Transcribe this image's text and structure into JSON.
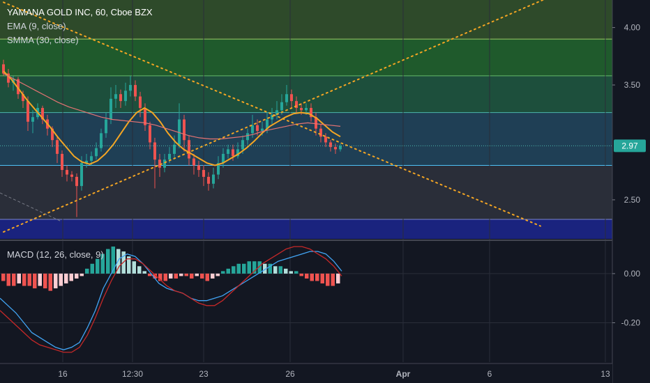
{
  "header": {
    "title": "YAMANA GOLD INC, 60, Cboe BZX",
    "indicators": [
      "EMA (9, close)",
      "SMMA (30, close)"
    ],
    "macd_label": "MACD (12, 26, close, 9)"
  },
  "price_label": "2.97",
  "colors": {
    "background": "#131722",
    "candle_up": "#26a69a",
    "candle_down": "#ef5350",
    "ema": "#f5a623",
    "smma": "#e57373",
    "trendline": "#f5a623",
    "macd_line": "#42a5f5",
    "signal_line": "#c62828",
    "hist_pos_strong": "#26a69a",
    "hist_pos_weak": "#b2dfdb",
    "hist_neg_strong": "#ef5350",
    "hist_neg_weak": "#ffcdd2"
  },
  "chart_data": [
    {
      "type": "candlestick",
      "y_ticks": [
        "4.00",
        "3.50",
        "2.50"
      ],
      "ylim": [
        2.16,
        4.24
      ],
      "x_ticks": [
        "16",
        "12:30",
        "23",
        "26",
        "Apr",
        "6",
        "13"
      ],
      "zones": [
        {
          "from": 3.9,
          "to": 4.24,
          "color": "#2e4a2a"
        },
        {
          "from": 3.58,
          "to": 3.9,
          "color": "#1f5a2c"
        },
        {
          "from": 3.26,
          "to": 3.58,
          "color": "#1d4f3c"
        },
        {
          "from": 2.8,
          "to": 3.26,
          "color": "#1f3f55"
        },
        {
          "from": 2.33,
          "to": 2.8,
          "color": "#2a2e39"
        },
        {
          "from": 2.16,
          "to": 2.33,
          "color": "#1a237e"
        }
      ],
      "zone_lines": [
        {
          "y": 3.9,
          "color": "#9ccc65"
        },
        {
          "y": 3.58,
          "color": "#66bb6a"
        },
        {
          "y": 3.26,
          "color": "#4db6ac"
        },
        {
          "y": 2.8,
          "color": "#4fc3f7"
        },
        {
          "y": 2.33,
          "color": "#7986cb"
        }
      ],
      "last_price": 2.97,
      "candles": [
        [
          3.68,
          3.6,
          3.72,
          3.58
        ],
        [
          3.6,
          3.52,
          3.64,
          3.48
        ],
        [
          3.52,
          3.55,
          3.58,
          3.45
        ],
        [
          3.55,
          3.42,
          3.57,
          3.38
        ],
        [
          3.42,
          3.36,
          3.45,
          3.3
        ],
        [
          3.36,
          3.18,
          3.4,
          3.1
        ],
        [
          3.18,
          3.22,
          3.28,
          3.08
        ],
        [
          3.22,
          3.3,
          3.34,
          3.2
        ],
        [
          3.3,
          3.2,
          3.32,
          3.16
        ],
        [
          3.2,
          3.12,
          3.24,
          3.06
        ],
        [
          3.12,
          3.02,
          3.14,
          2.96
        ],
        [
          3.02,
          2.9,
          3.06,
          2.82
        ],
        [
          2.9,
          2.76,
          2.93,
          2.7
        ],
        [
          2.76,
          2.72,
          2.8,
          2.66
        ],
        [
          2.72,
          2.7,
          2.75,
          2.66
        ],
        [
          2.7,
          2.62,
          2.73,
          2.35
        ],
        [
          2.62,
          2.82,
          2.88,
          2.58
        ],
        [
          2.82,
          2.84,
          2.9,
          2.78
        ],
        [
          2.84,
          2.88,
          2.92,
          2.8
        ],
        [
          2.88,
          2.95,
          3.0,
          2.85
        ],
        [
          2.95,
          3.08,
          3.12,
          2.92
        ],
        [
          3.08,
          3.2,
          3.26,
          3.04
        ],
        [
          3.2,
          3.38,
          3.48,
          3.16
        ],
        [
          3.38,
          3.42,
          3.5,
          3.3
        ],
        [
          3.42,
          3.36,
          3.46,
          3.3
        ],
        [
          3.36,
          3.45,
          3.52,
          3.32
        ],
        [
          3.45,
          3.5,
          3.58,
          3.4
        ],
        [
          3.5,
          3.4,
          3.54,
          3.36
        ],
        [
          3.4,
          3.3,
          3.44,
          3.22
        ],
        [
          3.3,
          3.15,
          3.34,
          3.1
        ],
        [
          3.15,
          3.0,
          3.18,
          2.94
        ],
        [
          3.0,
          2.85,
          3.04,
          2.6
        ],
        [
          2.85,
          2.78,
          2.9,
          2.7
        ],
        [
          2.78,
          2.85,
          2.9,
          2.74
        ],
        [
          2.85,
          2.9,
          2.96,
          2.82
        ],
        [
          2.9,
          2.98,
          3.06,
          2.86
        ],
        [
          2.98,
          3.2,
          3.34,
          2.95
        ],
        [
          3.2,
          3.02,
          3.24,
          2.92
        ],
        [
          3.02,
          2.86,
          3.06,
          2.8
        ],
        [
          2.86,
          2.8,
          2.9,
          2.72
        ],
        [
          2.8,
          2.76,
          2.84,
          2.7
        ],
        [
          2.76,
          2.7,
          2.8,
          2.62
        ],
        [
          2.7,
          2.64,
          2.74,
          2.58
        ],
        [
          2.64,
          2.72,
          2.78,
          2.6
        ],
        [
          2.72,
          2.82,
          2.88,
          2.68
        ],
        [
          2.82,
          2.9,
          2.95,
          2.78
        ],
        [
          2.9,
          2.94,
          2.98,
          2.86
        ],
        [
          2.94,
          2.88,
          2.98,
          2.84
        ],
        [
          2.88,
          2.94,
          3.0,
          2.86
        ],
        [
          2.94,
          3.02,
          3.06,
          2.9
        ],
        [
          3.02,
          3.08,
          3.12,
          2.98
        ],
        [
          3.08,
          3.15,
          3.24,
          3.04
        ],
        [
          3.15,
          3.1,
          3.2,
          3.06
        ],
        [
          3.1,
          3.12,
          3.18,
          3.06
        ],
        [
          3.12,
          3.2,
          3.26,
          3.08
        ],
        [
          3.2,
          3.24,
          3.3,
          3.16
        ],
        [
          3.24,
          3.28,
          3.36,
          3.2
        ],
        [
          3.28,
          3.35,
          3.42,
          3.24
        ],
        [
          3.35,
          3.42,
          3.5,
          3.32
        ],
        [
          3.42,
          3.36,
          3.46,
          3.3
        ],
        [
          3.36,
          3.3,
          3.4,
          3.26
        ],
        [
          3.3,
          3.28,
          3.34,
          3.24
        ],
        [
          3.28,
          3.3,
          3.34,
          3.24
        ],
        [
          3.3,
          3.22,
          3.34,
          3.18
        ],
        [
          3.22,
          3.12,
          3.26,
          3.06
        ],
        [
          3.12,
          3.05,
          3.16,
          3.0
        ],
        [
          3.05,
          3.0,
          3.08,
          2.96
        ],
        [
          3.0,
          2.96,
          3.02,
          2.92
        ],
        [
          2.96,
          2.94,
          2.99,
          2.9
        ],
        [
          2.94,
          2.97,
          2.99,
          2.92
        ]
      ],
      "ema": [
        3.62,
        3.55,
        3.46,
        3.37,
        3.29,
        3.21,
        3.13,
        3.04,
        2.96,
        2.88,
        2.83,
        2.81,
        2.84,
        2.9,
        2.98,
        3.08,
        3.18,
        3.26,
        3.3,
        3.26,
        3.18,
        3.08,
        3.0,
        2.94,
        2.9,
        2.86,
        2.82,
        2.8,
        2.82,
        2.86,
        2.9,
        2.95,
        3.01,
        3.08,
        3.14,
        3.18,
        3.22,
        3.25,
        3.26,
        3.25,
        3.21,
        3.15,
        3.09,
        3.05
      ],
      "smma": [
        3.6,
        3.55,
        3.5,
        3.45,
        3.4,
        3.35,
        3.31,
        3.28,
        3.25,
        3.22,
        3.2,
        3.19,
        3.18,
        3.17,
        3.15,
        3.12,
        3.09,
        3.06,
        3.04,
        3.03,
        3.03,
        3.04,
        3.05,
        3.07,
        3.1,
        3.12,
        3.14,
        3.16,
        3.17,
        3.16,
        3.15,
        3.14
      ],
      "trendlines": [
        {
          "from": [
            0,
            4.22
          ],
          "to": [
            70,
            2.98
          ],
          "style": "dotted"
        },
        {
          "from": [
            0,
            2.22
          ],
          "to": [
            70,
            3.5
          ],
          "style": "dotted"
        }
      ]
    },
    {
      "type": "macd",
      "title": "MACD (12, 26, close, 9)",
      "y_ticks": [
        "0.00",
        "-0.20"
      ],
      "ylim": [
        -0.36,
        0.13
      ],
      "histogram": [
        -0.03,
        -0.05,
        -0.05,
        -0.04,
        -0.05,
        -0.05,
        -0.06,
        -0.05,
        -0.06,
        -0.07,
        -0.06,
        -0.05,
        -0.04,
        -0.03,
        -0.02,
        -0.01,
        0.02,
        0.04,
        0.06,
        0.08,
        0.1,
        0.11,
        0.1,
        0.09,
        0.07,
        0.05,
        0.03,
        0.01,
        -0.01,
        -0.02,
        -0.03,
        -0.03,
        -0.02,
        -0.02,
        -0.01,
        -0.01,
        -0.02,
        -0.01,
        -0.02,
        -0.03,
        -0.02,
        -0.01,
        0.01,
        0.02,
        0.03,
        0.04,
        0.04,
        0.05,
        0.05,
        0.05,
        0.04,
        0.04,
        0.03,
        0.03,
        0.02,
        0.01,
        0.01,
        -0.01,
        -0.02,
        -0.03,
        -0.03,
        -0.04,
        -0.05,
        -0.05,
        -0.04
      ],
      "macd": [
        -0.1,
        -0.13,
        -0.16,
        -0.2,
        -0.24,
        -0.26,
        -0.28,
        -0.3,
        -0.31,
        -0.3,
        -0.28,
        -0.22,
        -0.15,
        -0.06,
        0.0,
        0.06,
        0.08,
        0.07,
        0.04,
        0.0,
        -0.04,
        -0.06,
        -0.07,
        -0.08,
        -0.1,
        -0.11,
        -0.11,
        -0.1,
        -0.09,
        -0.07,
        -0.05,
        -0.03,
        -0.01,
        0.01,
        0.03,
        0.05,
        0.06,
        0.07,
        0.08,
        0.09,
        0.09,
        0.08,
        0.05,
        0.01
      ],
      "signal": [
        -0.15,
        -0.18,
        -0.21,
        -0.24,
        -0.27,
        -0.29,
        -0.3,
        -0.31,
        -0.32,
        -0.32,
        -0.3,
        -0.25,
        -0.18,
        -0.1,
        -0.03,
        0.03,
        0.06,
        0.06,
        0.04,
        0.01,
        -0.02,
        -0.05,
        -0.07,
        -0.08,
        -0.1,
        -0.12,
        -0.13,
        -0.13,
        -0.11,
        -0.08,
        -0.05,
        -0.02,
        0.01,
        0.04,
        0.06,
        0.08,
        0.1,
        0.11,
        0.11,
        0.1,
        0.08,
        0.06,
        0.03,
        -0.01
      ]
    }
  ]
}
